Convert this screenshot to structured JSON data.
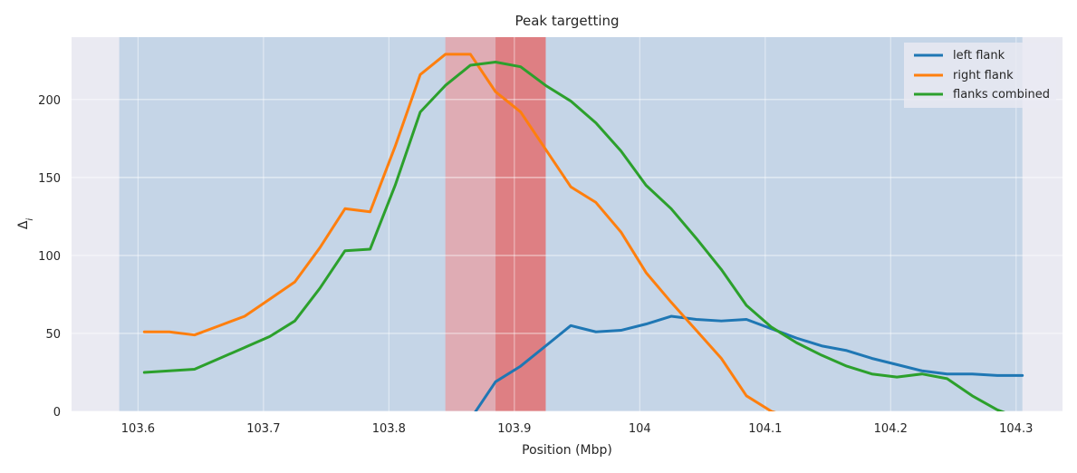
{
  "chart_data": {
    "type": "line",
    "title": "Peak targetting",
    "xlabel": "Position (Mbp)",
    "ylabel_base": "Δ",
    "ylabel_sub": "i",
    "xlim": [
      103.547,
      104.337
    ],
    "ylim": [
      0,
      240
    ],
    "xticks": [
      103.6,
      103.7,
      103.8,
      103.9,
      104.0,
      104.1,
      104.2,
      104.3
    ],
    "xtick_labels": [
      "103.6",
      "103.7",
      "103.8",
      "103.9",
      "104",
      "104.1",
      "104.2",
      "104.3"
    ],
    "yticks": [
      0,
      50,
      100,
      150,
      200
    ],
    "ytick_labels": [
      "0",
      "50",
      "100",
      "150",
      "200"
    ],
    "grid": true,
    "legend_position": "top-right",
    "background_color": "#eaeaf2",
    "spans": [
      {
        "role": "window",
        "x0": 103.585,
        "x1": 104.305,
        "color": "#a6c3df",
        "opacity": 0.55
      },
      {
        "role": "peak-outer",
        "x0": 103.845,
        "x1": 103.925,
        "color": "#e3a4aa",
        "opacity": 0.85
      },
      {
        "role": "peak-inner",
        "x0": 103.885,
        "x1": 103.925,
        "color": "#de7f83",
        "opacity": 1.0
      }
    ],
    "series": [
      {
        "name": "left flank",
        "color": "#1f77b4",
        "x": [
          103.865,
          103.885,
          103.905,
          103.925,
          103.945,
          103.965,
          103.985,
          104.005,
          104.025,
          104.045,
          104.065,
          104.085,
          104.105,
          104.125,
          104.145,
          104.165,
          104.185,
          104.205,
          104.225,
          104.245,
          104.265,
          104.285,
          104.305
        ],
        "y": [
          -5,
          19,
          29,
          42,
          55,
          51,
          52,
          56,
          61,
          59,
          58,
          59,
          53,
          47,
          42,
          39,
          34,
          30,
          26,
          24,
          24,
          23,
          23
        ]
      },
      {
        "name": "right flank",
        "color": "#ff7f0e",
        "x": [
          103.605,
          103.625,
          103.645,
          103.665,
          103.685,
          103.705,
          103.725,
          103.745,
          103.765,
          103.785,
          103.805,
          103.825,
          103.845,
          103.865,
          103.885,
          103.905,
          103.925,
          103.945,
          103.965,
          103.985,
          104.005,
          104.025,
          104.045,
          104.065,
          104.085,
          104.105,
          104.125
        ],
        "y": [
          51,
          51,
          49,
          55,
          61,
          72,
          83,
          105,
          130,
          128,
          170,
          216,
          229,
          229,
          205,
          192,
          168,
          144,
          134,
          115,
          89,
          70,
          52,
          34,
          10,
          0,
          -5
        ]
      },
      {
        "name": "flanks combined",
        "color": "#2ca02c",
        "x": [
          103.605,
          103.625,
          103.645,
          103.665,
          103.685,
          103.705,
          103.725,
          103.745,
          103.765,
          103.785,
          103.805,
          103.825,
          103.845,
          103.865,
          103.885,
          103.905,
          103.925,
          103.945,
          103.965,
          103.985,
          104.005,
          104.025,
          104.045,
          104.065,
          104.085,
          104.105,
          104.125,
          104.145,
          104.165,
          104.185,
          104.205,
          104.225,
          104.245,
          104.265,
          104.285,
          104.305
        ],
        "y": [
          25,
          26,
          27,
          34,
          41,
          48,
          58,
          79,
          103,
          104,
          145,
          192,
          209,
          222,
          224,
          221,
          209,
          199,
          185,
          167,
          145,
          130,
          111,
          91,
          68,
          54,
          44,
          36,
          29,
          24,
          22,
          24,
          21,
          10,
          1,
          -5
        ]
      }
    ]
  }
}
